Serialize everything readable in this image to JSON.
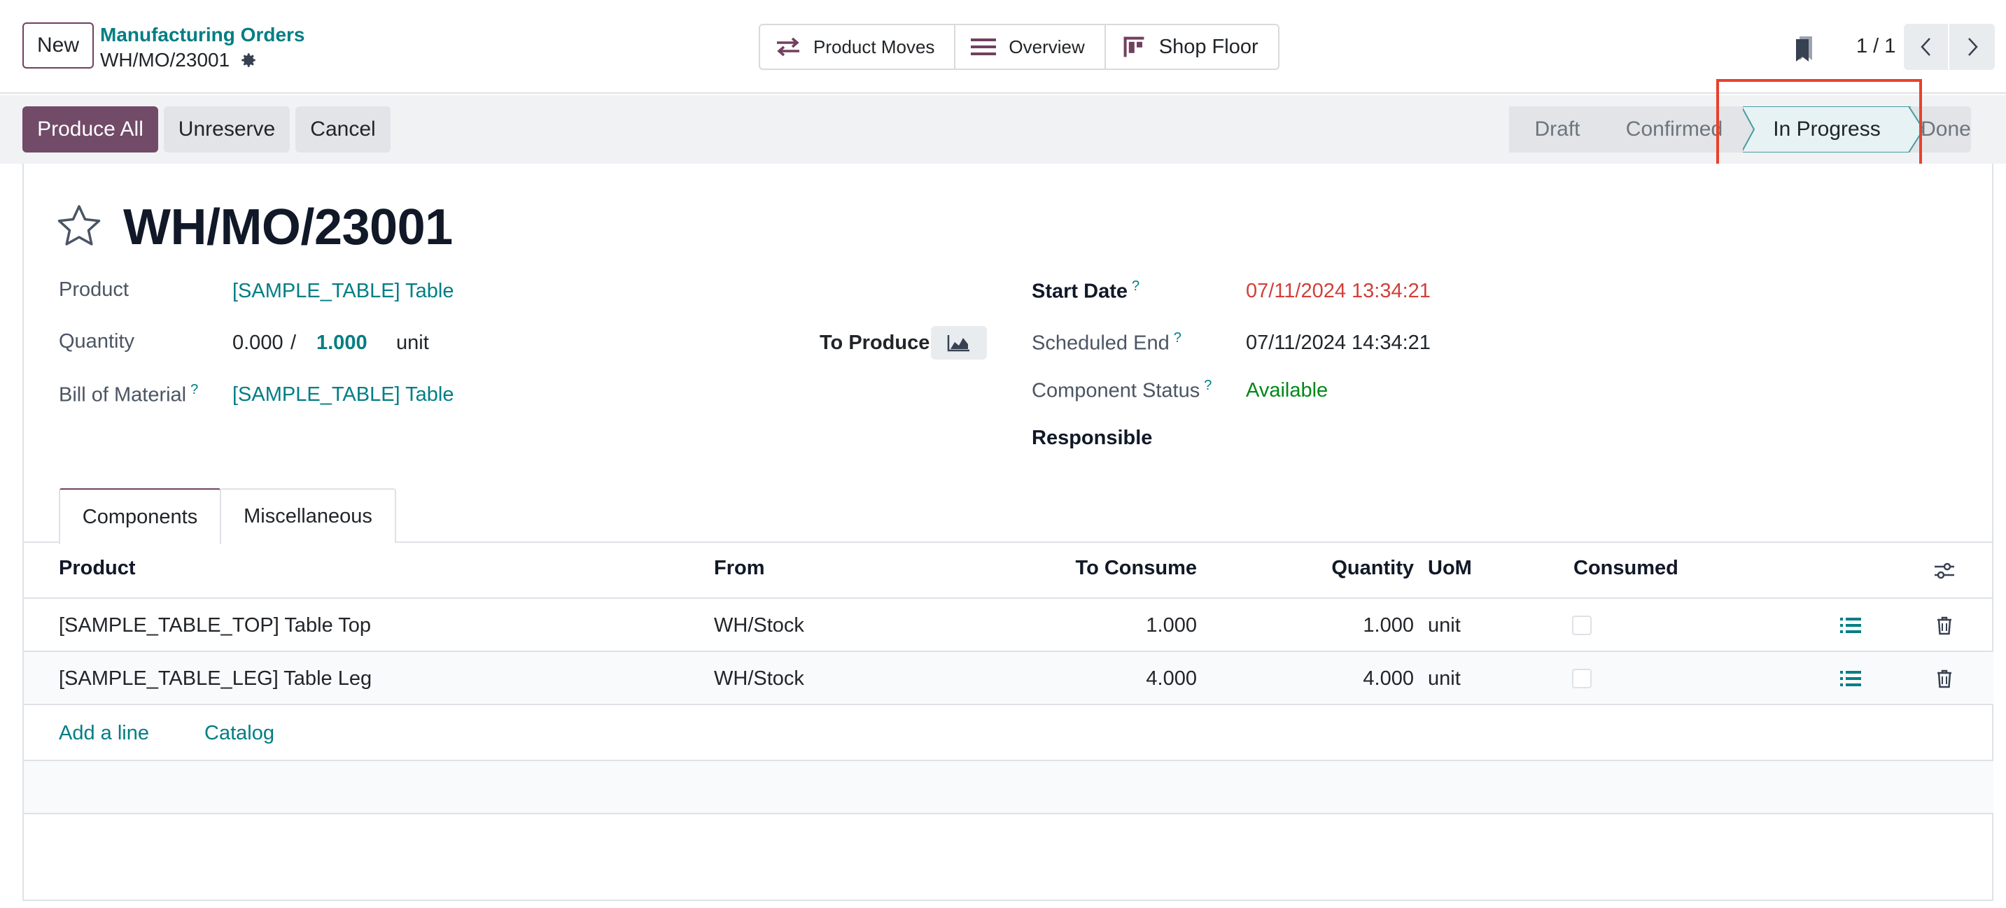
{
  "topbar": {
    "new_label": "New",
    "breadcrumb_parent": "Manufacturing Orders",
    "breadcrumb_current": "WH/MO/23001",
    "views": [
      {
        "label": "Product Moves",
        "icon": "arrows-exchange-icon"
      },
      {
        "label": "Overview",
        "icon": "list-lines-icon"
      },
      {
        "label": "Shop Floor",
        "icon": "shop-floor-icon"
      }
    ],
    "pager": "1 / 1"
  },
  "actions": {
    "produce_all": "Produce All",
    "unreserve": "Unreserve",
    "cancel": "Cancel"
  },
  "status": {
    "stages": [
      "Draft",
      "Confirmed",
      "In Progress",
      "Done"
    ],
    "active": "In Progress"
  },
  "record": {
    "title": "WH/MO/23001",
    "product_label": "Product",
    "product_value": "[SAMPLE_TABLE] Table",
    "quantity_label": "Quantity",
    "quantity_produced": "0.000",
    "quantity_sep": "/",
    "quantity_target": "1.000",
    "quantity_unit": "unit",
    "to_produce_label": "To Produce",
    "bom_label": "Bill of Material",
    "bom_value": "[SAMPLE_TABLE] Table",
    "start_date_label": "Start Date",
    "start_date_value": "07/11/2024 13:34:21",
    "scheduled_end_label": "Scheduled End",
    "scheduled_end_value": "07/11/2024 14:34:21",
    "component_status_label": "Component Status",
    "component_status_value": "Available",
    "responsible_label": "Responsible",
    "help_mark": "?"
  },
  "tabs": [
    "Components",
    "Miscellaneous"
  ],
  "components": {
    "headers": {
      "product": "Product",
      "from": "From",
      "to_consume": "To Consume",
      "quantity": "Quantity",
      "uom": "UoM",
      "consumed": "Consumed"
    },
    "rows": [
      {
        "product": "[SAMPLE_TABLE_TOP] Table Top",
        "from": "WH/Stock",
        "to_consume": "1.000",
        "quantity": "1.000",
        "uom": "unit"
      },
      {
        "product": "[SAMPLE_TABLE_LEG] Table Leg",
        "from": "WH/Stock",
        "to_consume": "4.000",
        "quantity": "4.000",
        "uom": "unit"
      }
    ],
    "add_line": "Add a line",
    "catalog": "Catalog"
  },
  "colors": {
    "brand": "#714b67",
    "link": "#017e84",
    "date_late": "#d23f3a",
    "available": "#008818",
    "highlight": "#e8412c"
  }
}
